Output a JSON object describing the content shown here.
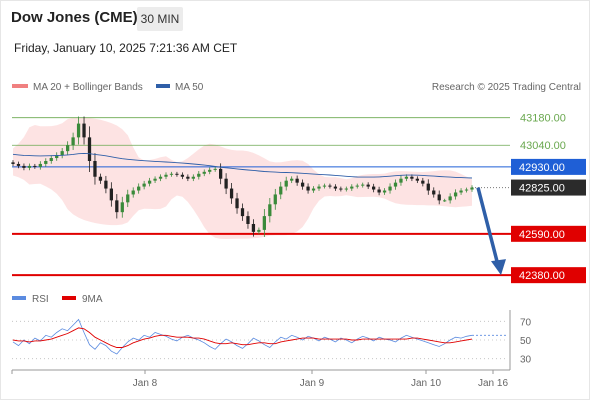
{
  "header": {
    "title": "Dow Jones (CME)",
    "timeframe": "30 MIN",
    "datetime": "Friday, January 10, 2025 7:21:36 AM CET"
  },
  "legend": {
    "bollinger": "MA 20 + Bollinger Bands",
    "ma50": "MA 50",
    "rsi": "RSI",
    "rsi_ma": "9MA",
    "copyright": "Research © 2025 Trading Central"
  },
  "colors": {
    "up": "#3a8a3a",
    "down": "#222222",
    "bollinger": "#f08080",
    "ma50": "#2f5fa8",
    "resistance": "#6aa84f",
    "pivot": "#1f5fd6",
    "support": "#e00000",
    "current": "#2b2b2b",
    "rsi": "#5b8be0",
    "rsi_ma": "#e00000"
  },
  "chart_data": {
    "type": "candlestick",
    "x_labels": [
      "Jan 8",
      "Jan 9",
      "Jan 10",
      "Jan 16"
    ],
    "ylim": [
      42330,
      43280
    ],
    "levels": [
      {
        "label": "43180.00",
        "value": 43180,
        "kind": "resistance"
      },
      {
        "label": "43040.00",
        "value": 43040,
        "kind": "resistance"
      },
      {
        "label": "42930.00",
        "value": 42930,
        "kind": "pivot"
      },
      {
        "label": "42825.00",
        "value": 42825,
        "kind": "current"
      },
      {
        "label": "42590.00",
        "value": 42590,
        "kind": "support"
      },
      {
        "label": "42380.00",
        "value": 42380,
        "kind": "support"
      }
    ],
    "forecast": {
      "from": 42825,
      "to": 42380
    },
    "close_path": [
      42945,
      42935,
      42925,
      42935,
      42930,
      42945,
      42960,
      42975,
      42990,
      43010,
      43040,
      43080,
      43150,
      43080,
      42960,
      42880,
      42860,
      42820,
      42760,
      42700,
      42750,
      42790,
      42810,
      42830,
      42845,
      42860,
      42870,
      42880,
      42890,
      42895,
      42890,
      42880,
      42870,
      42880,
      42895,
      42905,
      42915,
      42920,
      42870,
      42820,
      42770,
      42720,
      42680,
      42640,
      42600,
      42610,
      42680,
      42740,
      42790,
      42830,
      42860,
      42870,
      42850,
      42830,
      42810,
      42820,
      42830,
      42835,
      42830,
      42820,
      42815,
      42820,
      42830,
      42835,
      42840,
      42830,
      42815,
      42800,
      42810,
      42830,
      42850,
      42870,
      42880,
      42870,
      42860,
      42845,
      42810,
      42790,
      42760,
      42760,
      42780,
      42800,
      42810,
      42815,
      42825
    ],
    "rsi": {
      "ylabels": [
        "70",
        "50",
        "30"
      ],
      "levels": [
        70,
        50,
        30
      ],
      "ylim": [
        20,
        80
      ],
      "values": [
        48,
        44,
        50,
        46,
        52,
        49,
        55,
        53,
        58,
        62,
        60,
        66,
        72,
        58,
        45,
        40,
        47,
        44,
        38,
        35,
        42,
        48,
        52,
        50,
        55,
        53,
        58,
        56,
        54,
        51,
        49,
        53,
        55,
        52,
        50,
        47,
        43,
        40,
        46,
        51,
        48,
        44,
        41,
        46,
        52,
        49,
        45,
        42,
        48,
        53,
        51,
        55,
        53,
        50,
        54,
        52,
        49,
        53,
        51,
        48,
        52,
        50,
        47,
        51,
        54,
        52,
        49,
        53,
        51,
        50,
        48,
        52,
        55,
        53,
        51,
        49,
        47,
        45,
        43,
        46,
        50,
        53,
        52,
        54,
        55
      ],
      "ma": [
        50,
        49,
        49,
        48,
        49,
        49,
        50,
        51,
        53,
        55,
        57,
        60,
        63,
        62,
        58,
        53,
        50,
        47,
        44,
        42,
        42,
        44,
        47,
        49,
        51,
        52,
        54,
        55,
        55,
        54,
        53,
        53,
        53,
        52,
        52,
        51,
        49,
        47,
        46,
        46,
        47,
        46,
        45,
        45,
        46,
        47,
        47,
        46,
        46,
        48,
        49,
        50,
        51,
        52,
        52,
        52,
        51,
        51,
        51,
        51,
        51,
        51,
        50,
        50,
        51,
        51,
        51,
        51,
        51,
        51,
        51,
        51,
        51,
        52,
        52,
        51,
        50,
        49,
        48,
        47,
        47,
        48,
        49,
        50,
        51
      ]
    }
  }
}
